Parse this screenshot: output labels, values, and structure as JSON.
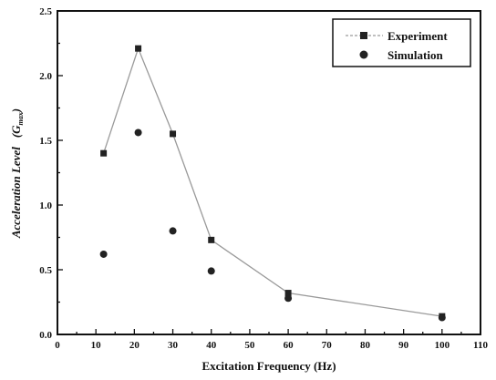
{
  "chart_data": {
    "type": "scatter",
    "title": "",
    "xlabel": "Excitation Frequency (Hz)",
    "ylabel_main": "Acceleration Level",
    "ylabel_unit": "(G",
    "ylabel_unit_sub": "max",
    "ylabel_unit_close": ")",
    "xlim": [
      0,
      110
    ],
    "ylim": [
      0.0,
      2.5
    ],
    "xticks": [
      "0",
      "10",
      "20",
      "30",
      "40",
      "50",
      "60",
      "70",
      "80",
      "90",
      "100",
      "110"
    ],
    "yticks": [
      "0.0",
      "0.5",
      "1.0",
      "1.5",
      "2.0",
      "2.5"
    ],
    "grid": false,
    "legend_position": "top-right",
    "series": [
      {
        "name": "Experiment",
        "marker": "square",
        "line": true,
        "color": "#222222",
        "line_color": "#9a9a9a",
        "points": [
          [
            12,
            1.4
          ],
          [
            21,
            2.21
          ],
          [
            30,
            1.55
          ],
          [
            40,
            0.73
          ],
          [
            60,
            0.32
          ],
          [
            100,
            0.14
          ]
        ]
      },
      {
        "name": "Simulation",
        "marker": "circle",
        "line": false,
        "color": "#222222",
        "points": [
          [
            12,
            0.62
          ],
          [
            21,
            1.56
          ],
          [
            30,
            0.8
          ],
          [
            40,
            0.49
          ],
          [
            60,
            0.28
          ],
          [
            100,
            0.13
          ]
        ]
      }
    ]
  }
}
